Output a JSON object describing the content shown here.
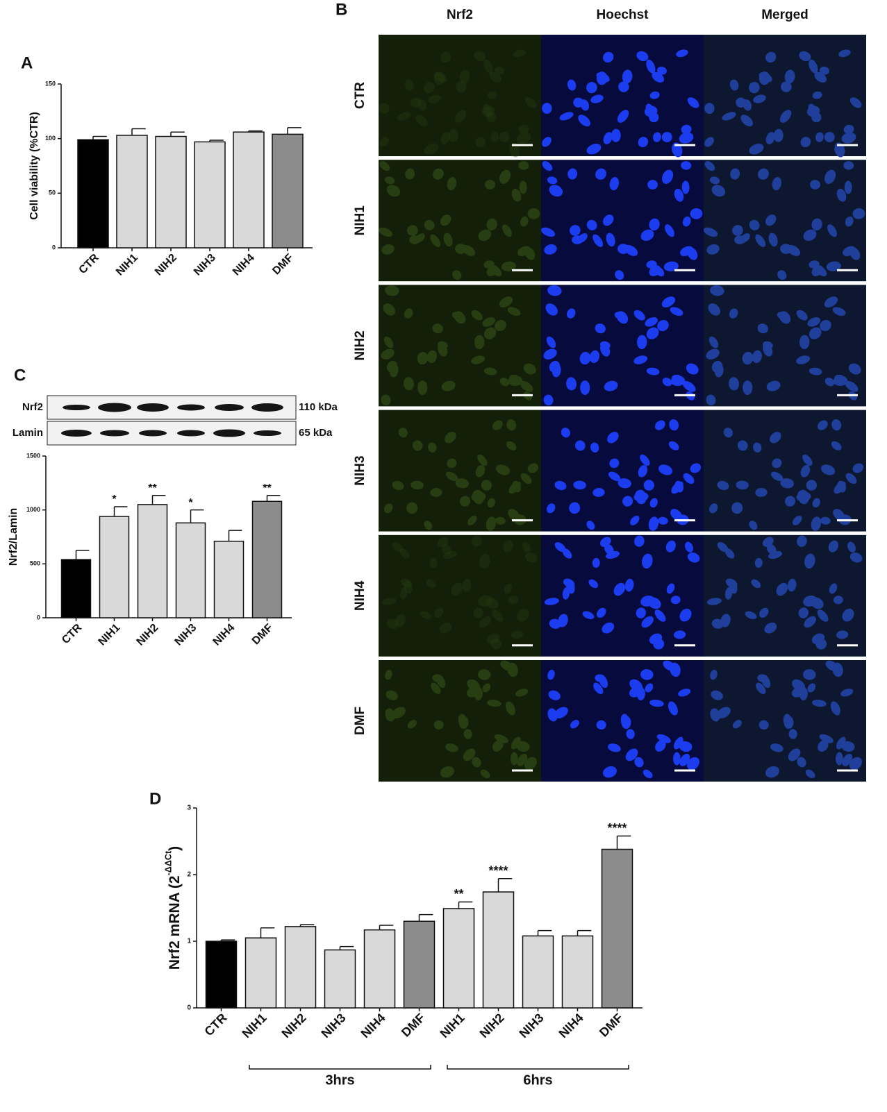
{
  "chart_data": [
    {
      "type": "bar",
      "panel_label": "A",
      "y_label": "Cell viability (%CTR)",
      "categories": [
        "CTR",
        "NIH1",
        "NIH2",
        "NIH3",
        "NIH4",
        "DMF"
      ],
      "values": [
        99,
        103,
        102,
        97,
        106,
        104
      ],
      "errors": [
        3,
        6,
        4,
        1.5,
        1,
        6
      ],
      "colors": [
        "#000000",
        "#d9d9d9",
        "#d9d9d9",
        "#d9d9d9",
        "#d9d9d9",
        "#8c8c8c"
      ],
      "ylim": [
        0,
        150
      ],
      "yticks": [
        0,
        50,
        100,
        150
      ]
    },
    {
      "type": "bar",
      "panel_label": "C",
      "y_label": "Nrf2/Lamin",
      "blot": [
        {
          "label": "Nrf2",
          "size": "110 kDa"
        },
        {
          "label": "Lamin",
          "size": "65 kDa"
        }
      ],
      "categories": [
        "CTR",
        "NIH1",
        "NIH2",
        "NIH3",
        "NIH4",
        "DMF"
      ],
      "values": [
        540,
        940,
        1050,
        880,
        710,
        1080
      ],
      "errors": [
        85,
        90,
        85,
        120,
        100,
        55
      ],
      "annotations": [
        null,
        "*",
        "**",
        "*",
        null,
        "**"
      ],
      "colors": [
        "#000000",
        "#d9d9d9",
        "#d9d9d9",
        "#d9d9d9",
        "#d9d9d9",
        "#8c8c8c"
      ],
      "ylim": [
        0,
        1500
      ],
      "yticks": [
        0,
        500,
        1000,
        1500
      ]
    },
    {
      "type": "bar",
      "panel_label": "D",
      "y_label_parts": [
        "Nrf2 mRNA (2",
        "-ΔΔCt",
        ")"
      ],
      "categories": [
        "CTR",
        "NIH1",
        "NIH2",
        "NIH3",
        "NIH4",
        "DMF",
        "NIH1",
        "NIH2",
        "NIH3",
        "NIH4",
        "DMF"
      ],
      "values": [
        1.0,
        1.05,
        1.22,
        0.87,
        1.17,
        1.3,
        1.49,
        1.74,
        1.08,
        1.08,
        2.38
      ],
      "errors": [
        0.02,
        0.15,
        0.03,
        0.05,
        0.07,
        0.1,
        0.1,
        0.2,
        0.08,
        0.08,
        0.2
      ],
      "annotations": [
        null,
        null,
        null,
        null,
        null,
        null,
        "**",
        "****",
        null,
        null,
        "****"
      ],
      "colors": [
        "#000000",
        "#d9d9d9",
        "#d9d9d9",
        "#d9d9d9",
        "#d9d9d9",
        "#8c8c8c",
        "#d9d9d9",
        "#d9d9d9",
        "#d9d9d9",
        "#d9d9d9",
        "#8c8c8c"
      ],
      "groups": [
        "3hrs",
        "6hrs"
      ],
      "ylim": [
        0,
        3
      ],
      "yticks": [
        0,
        1,
        2,
        3
      ]
    }
  ],
  "micrograph": {
    "panel_label": "B",
    "columns": [
      "Nrf2",
      "Hoechst",
      "Merged"
    ],
    "rows": [
      "CTR",
      "NIH1",
      "NIH2",
      "NIH3",
      "NIH4",
      "DMF"
    ]
  }
}
